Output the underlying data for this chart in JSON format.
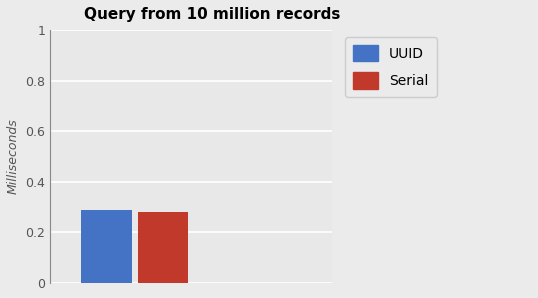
{
  "title": "Query from 10 million records",
  "ylabel": "Milliseconds",
  "categories": [
    "UUID",
    "Serial"
  ],
  "values": [
    0.29,
    0.28
  ],
  "bar_colors": [
    "#4472C4",
    "#C0392B"
  ],
  "ylim": [
    0,
    1.0
  ],
  "yticks": [
    0,
    0.2,
    0.4,
    0.6,
    0.8,
    1
  ],
  "ytick_labels": [
    "0",
    "0.2",
    "0.4",
    "0.6",
    "0.8",
    "1"
  ],
  "legend_labels": [
    "UUID",
    "Serial"
  ],
  "background_color": "#ebebeb",
  "plot_bg_color": "#e8e8e8",
  "title_fontsize": 11,
  "label_fontsize": 9,
  "tick_fontsize": 9,
  "grid_color": "#ffffff",
  "bar_positions": [
    1.5,
    2.5
  ],
  "bar_width": 0.9,
  "xlim": [
    0.5,
    5.5
  ]
}
